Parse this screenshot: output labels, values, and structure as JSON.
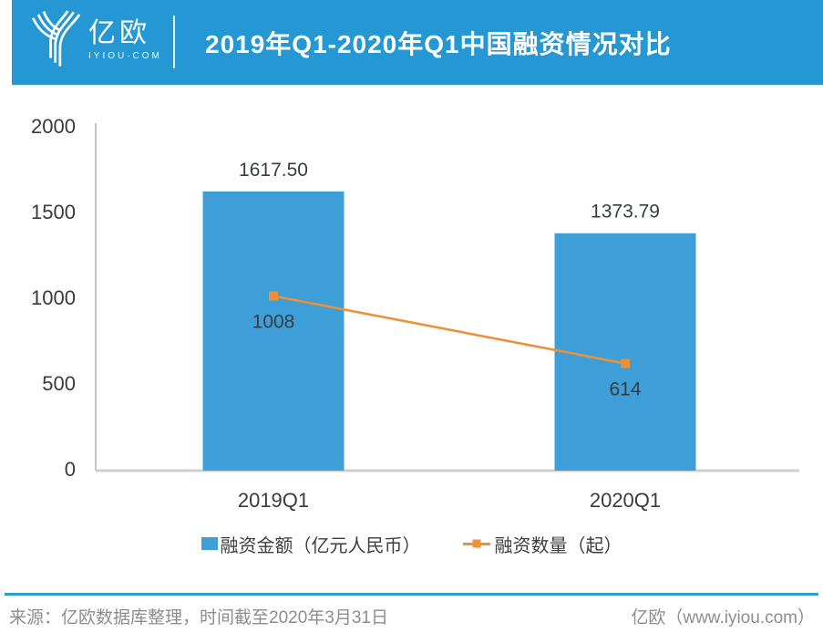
{
  "header": {
    "logo_name": "亿欧",
    "logo_domain": "IYIOU·COM",
    "title": "2019年Q1-2020年Q1中国融资情况对比"
  },
  "colors": {
    "header_bg": "#2598d4",
    "bar": "#3d9ed8",
    "line": "#ec9138",
    "axis_line": "#b6b6b6",
    "baseline": "#cfcfcf",
    "footer_divider": "#2d9ec9",
    "footer_text": "#8d8d8d"
  },
  "chart_data": {
    "type": "bar",
    "title": "2019年Q1-2020年Q1中国融资情况对比",
    "categories": [
      "2019Q1",
      "2020Q1"
    ],
    "series": [
      {
        "name": "融资金额（亿元人民币）",
        "type": "bar",
        "values": [
          1617.5,
          1373.79
        ],
        "labels": [
          "1617.50",
          "1373.79"
        ],
        "color": "#3d9ed8",
        "marker": "square"
      },
      {
        "name": "融资数量（起）",
        "type": "line",
        "values": [
          1008,
          614
        ],
        "labels": [
          "1008",
          "614"
        ],
        "color": "#ec9138",
        "marker": "line-square"
      }
    ],
    "xlabel": "",
    "ylabel": "",
    "ylim": [
      0,
      2000
    ],
    "yticks": [
      0,
      500,
      1000,
      1500,
      2000
    ],
    "grid": false,
    "legend_position": "bottom"
  },
  "footer": {
    "source": "来源：亿欧数据库整理，时间截至2020年3月31日",
    "site": "亿欧（www.iyiou.com）"
  }
}
